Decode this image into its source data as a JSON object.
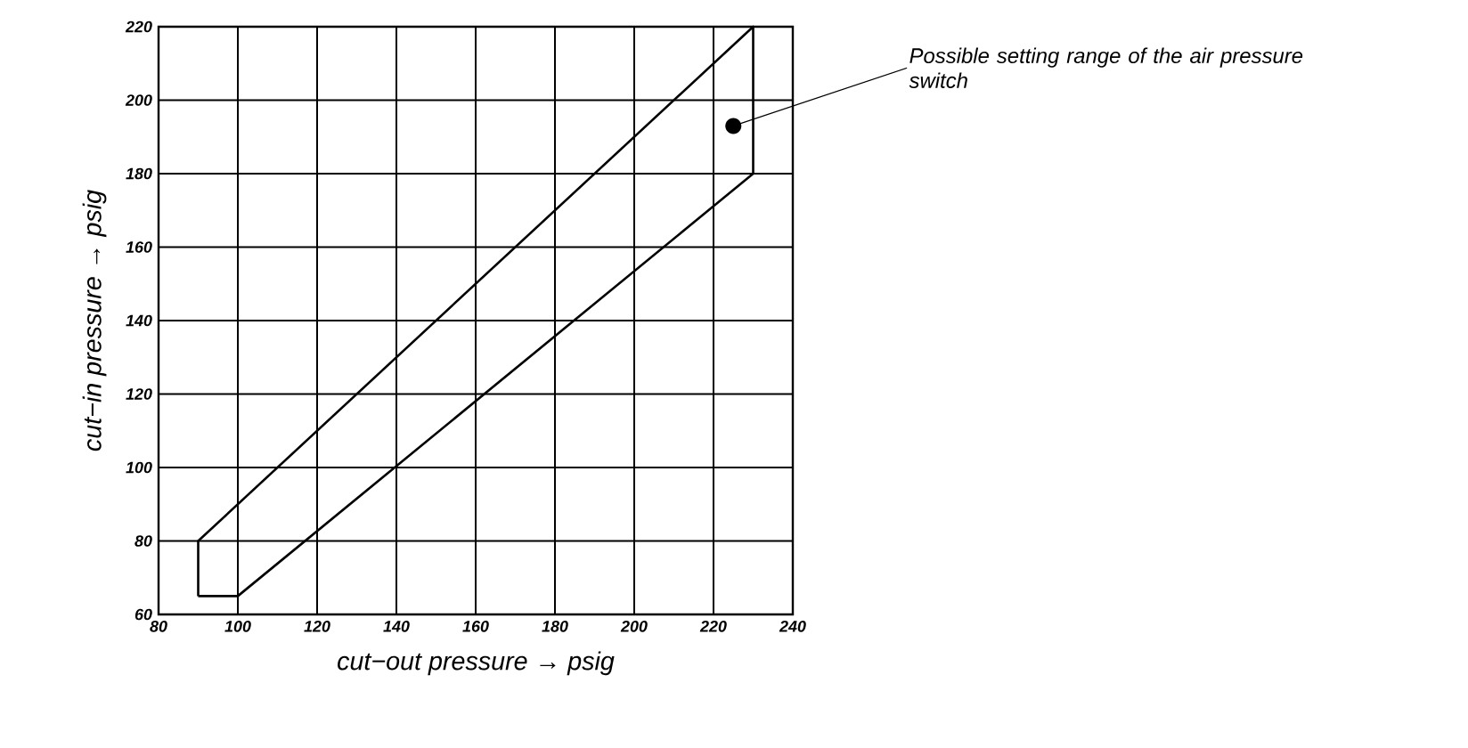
{
  "chart_data": {
    "type": "line",
    "xlabel": "cut−out pressure → psig",
    "ylabel": "cut−in pressure → psig",
    "xlim": [
      80,
      240
    ],
    "xticks": [
      80,
      100,
      120,
      140,
      160,
      180,
      200,
      220,
      240
    ],
    "ylim": [
      60,
      220
    ],
    "yticks": [
      60,
      80,
      100,
      120,
      140,
      160,
      180,
      200,
      220
    ],
    "grid": true,
    "marker": "none",
    "line_style": "solid",
    "series": [
      {
        "color": "#000000",
        "x": [
          90,
          90,
          230,
          230
        ],
        "values": [
          65,
          80,
          220,
          180
        ]
      },
      {
        "color": "#000000",
        "x": [
          90,
          100,
          230
        ],
        "values": [
          65,
          65,
          180
        ]
      }
    ],
    "annotations": [
      {
        "text": "Possible setting range of the air pressure switch",
        "x": 225,
        "y": 193
      }
    ]
  }
}
